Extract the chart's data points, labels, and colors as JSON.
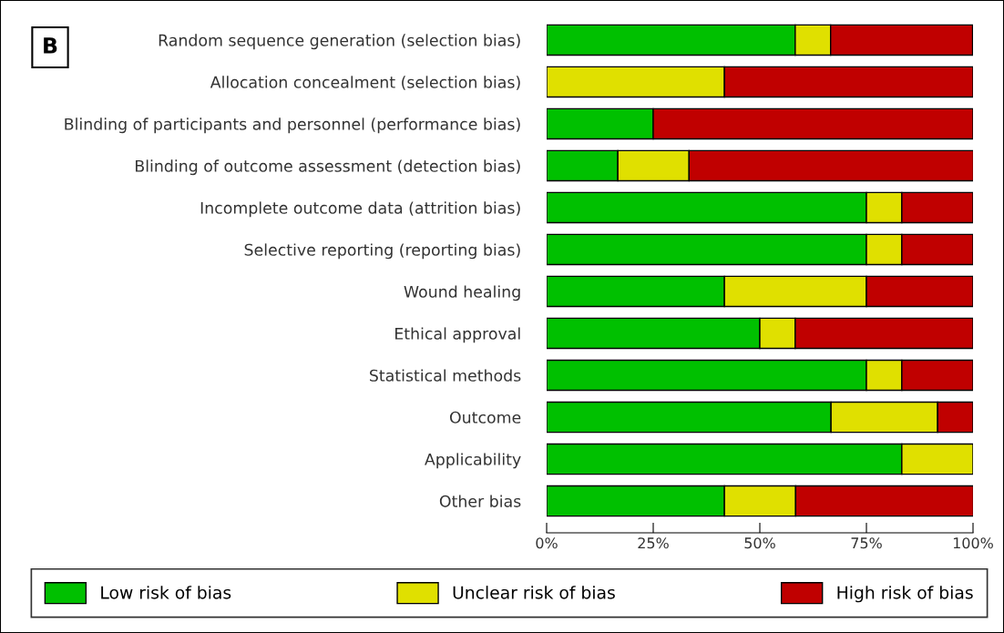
{
  "chart_data": {
    "type": "bar",
    "orientation": "horizontal",
    "stacked": true,
    "categories": [
      "Random sequence generation (selection bias)",
      "Allocation concealment (selection bias)",
      "Blinding of participants and personnel (performance bias)",
      "Blinding of outcome assessment (detection bias)",
      "Incomplete outcome data (attrition bias)",
      "Selective reporting (reporting bias)",
      "Wound healing",
      "Ethical approval",
      "Statistical methods",
      "Outcome",
      "Applicability",
      "Other bias"
    ],
    "series": [
      {
        "name": "Low risk of bias",
        "color": "#00c000",
        "values": [
          58.3,
          0,
          25,
          16.7,
          75,
          75,
          41.7,
          50,
          75,
          66.7,
          83.3,
          41.7
        ]
      },
      {
        "name": "Unclear risk of bias",
        "color": "#e0e000",
        "values": [
          8.3,
          41.7,
          0,
          16.7,
          8.3,
          8.3,
          33.3,
          8.3,
          8.3,
          25,
          16.7,
          16.7
        ]
      },
      {
        "name": "High risk of bias",
        "color": "#c00000",
        "values": [
          33.3,
          58.3,
          75,
          66.7,
          16.7,
          16.7,
          25,
          41.7,
          16.7,
          8.3,
          0,
          41.7
        ]
      }
    ],
    "xlim": [
      0,
      100
    ],
    "xticks": [
      {
        "value": 0,
        "label": "0%"
      },
      {
        "value": 25,
        "label": "25%"
      },
      {
        "value": 50,
        "label": "50%"
      },
      {
        "value": 75,
        "label": "75%"
      },
      {
        "value": 100,
        "label": "100%"
      }
    ],
    "annotations": [
      "B"
    ],
    "legend": "bottom",
    "grid": false
  }
}
